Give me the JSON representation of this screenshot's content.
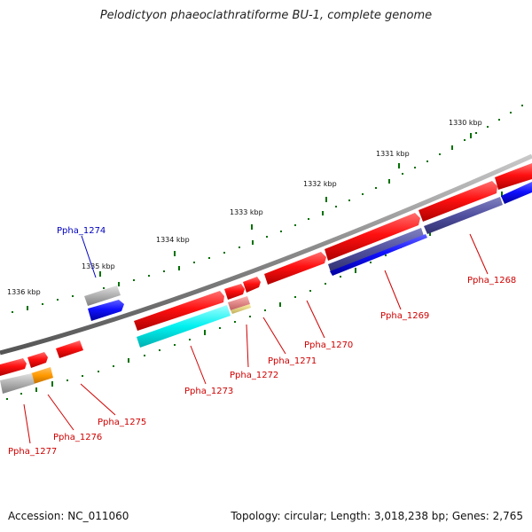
{
  "title": "Pelodictyon phaeoclathratiforme BU-1, complete genome",
  "footer": {
    "accession": "Accession: NC_011060",
    "summary": "Topology: circular; Length: 3,018,238 bp; Genes: 2,765"
  },
  "colors": {
    "forward_gene": "#e00000",
    "reverse_gene": "#0000e0",
    "other_gene": "#a8a8a8",
    "cds_cyan": "#00e8e8",
    "cds_orange": "#ff9900",
    "cds_pink": "#e88080",
    "cds_khaki": "#e8e080",
    "cds_slate": "#5a5aa0",
    "backbone": "#888888",
    "tick": "#007000",
    "label_red": "#d00000",
    "label_blue": "#0000c0"
  },
  "scale_labels": [
    "1330 kbp",
    "1331 kbp",
    "1332 kbp",
    "1333 kbp",
    "1334 kbp",
    "1335 kbp",
    "1336 kbp"
  ],
  "gene_labels": [
    {
      "name": "Ppha_1268",
      "color": "red"
    },
    {
      "name": "Ppha_1269",
      "color": "red"
    },
    {
      "name": "Ppha_1270",
      "color": "red"
    },
    {
      "name": "Ppha_1271",
      "color": "red"
    },
    {
      "name": "Ppha_1272",
      "color": "red"
    },
    {
      "name": "Ppha_1273",
      "color": "red"
    },
    {
      "name": "Ppha_1274",
      "color": "blue"
    },
    {
      "name": "Ppha_1275",
      "color": "red"
    },
    {
      "name": "Ppha_1276",
      "color": "red"
    },
    {
      "name": "Ppha_1277",
      "color": "red"
    }
  ]
}
